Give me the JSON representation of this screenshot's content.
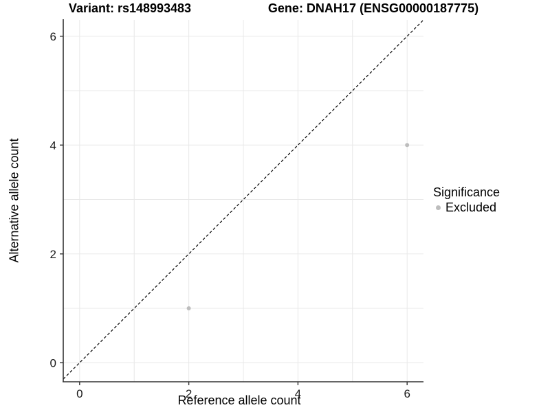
{
  "chart_data": {
    "type": "scatter",
    "title_left": "Variant: rs148993483",
    "title_right": "Gene: DNAH17 (ENSG00000187775)",
    "xlabel": "Reference allele count",
    "ylabel": "Alternative allele count",
    "xlim": [
      -0.3,
      6.3
    ],
    "ylim": [
      -0.35,
      6.3
    ],
    "x_ticks": {
      "major": [
        0,
        2,
        4,
        6
      ],
      "labels": [
        "0",
        "2",
        "4",
        "6"
      ]
    },
    "y_ticks": {
      "major": [
        0,
        2,
        4,
        6
      ],
      "labels": [
        "0",
        "2",
        "4",
        "6"
      ]
    },
    "gridlines": {
      "x": [
        0,
        1,
        2,
        3,
        4,
        5,
        6
      ],
      "y": [
        0,
        1,
        2,
        3,
        4,
        5,
        6
      ]
    },
    "grid": true,
    "legend": {
      "title": "Significance",
      "position": "right",
      "entries": [
        {
          "label": "Excluded",
          "color": "#bdbdbd"
        }
      ]
    },
    "series": [
      {
        "name": "Excluded",
        "color": "#bdbdbd",
        "points": [
          {
            "x": 2,
            "y": 1
          },
          {
            "x": 6,
            "y": 4
          }
        ]
      }
    ],
    "reference_line": {
      "type": "identity",
      "slope": 1,
      "intercept": 0,
      "style": "dashed",
      "color": "#000000"
    },
    "colors": {
      "grid": "#e8e8e8",
      "axis": "#333333",
      "tick_label": "#1a1a1a",
      "background": "#ffffff"
    }
  }
}
